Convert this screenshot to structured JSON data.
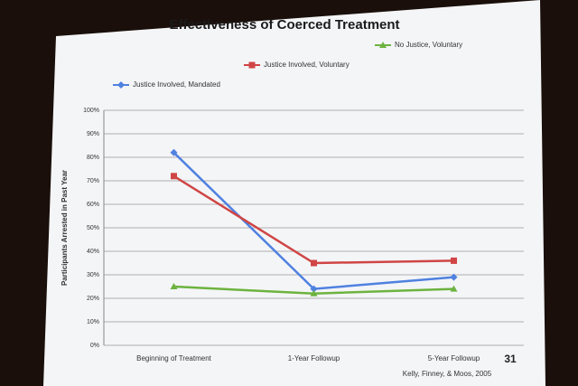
{
  "chart_data": {
    "type": "line",
    "title": "Effectiveness of Coerced Treatment",
    "y_label": "Participants Arrested in Past Year",
    "categories": [
      "Beginning of Treatment",
      "1-Year Followup",
      "5-Year Followup"
    ],
    "series": [
      {
        "name": "Justice Involved, Mandated",
        "color": "#4f81e0",
        "marker": "diamond",
        "values": [
          82,
          24,
          29
        ]
      },
      {
        "name": "Justice Involved, Voluntary",
        "color": "#d04545",
        "marker": "square",
        "values": [
          72,
          35,
          36
        ]
      },
      {
        "name": "No Justice, Voluntary",
        "color": "#6db33f",
        "marker": "triangle",
        "values": [
          25,
          22,
          24
        ]
      }
    ],
    "ylim": [
      0,
      100
    ],
    "yticks": [
      {
        "value": 0,
        "label": "0%"
      },
      {
        "value": 10,
        "label": "10%"
      },
      {
        "value": 20,
        "label": "20%"
      },
      {
        "value": 30,
        "label": "30%"
      },
      {
        "value": 40,
        "label": "40%"
      },
      {
        "value": 50,
        "label": "50%"
      },
      {
        "value": 60,
        "label": "60%"
      },
      {
        "value": 70,
        "label": "70%"
      },
      {
        "value": 80,
        "label": "80%"
      },
      {
        "value": 90,
        "label": "90%"
      },
      {
        "value": 100,
        "label": "100%"
      }
    ],
    "grid": true,
    "slide_number": "31",
    "source": "Kelly, Finney, & Moos, 2005"
  }
}
